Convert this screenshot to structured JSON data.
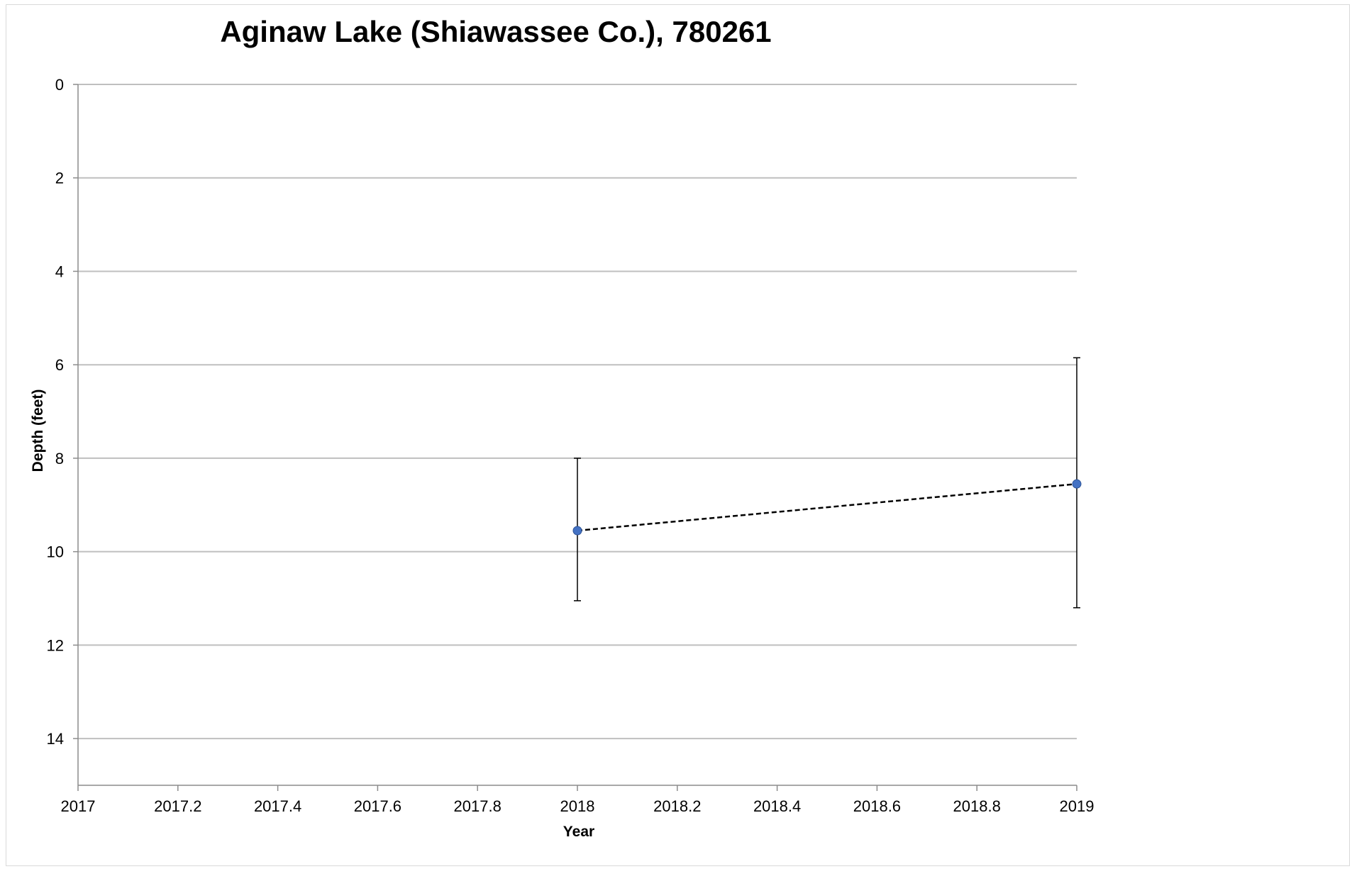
{
  "chart_data": {
    "type": "scatter",
    "title": "Aginaw Lake (Shiawassee Co.), 780261",
    "xlabel": "Year",
    "ylabel": "Depth (feet)",
    "xlim": [
      2017,
      2019
    ],
    "ylim": [
      0,
      15
    ],
    "y_reversed": true,
    "x_ticks": [
      "2017",
      "2017.2",
      "2017.4",
      "2017.6",
      "2017.8",
      "2018",
      "2018.2",
      "2018.4",
      "2018.6",
      "2018.8",
      "2019"
    ],
    "y_ticks": [
      "0",
      "2",
      "4",
      "6",
      "8",
      "10",
      "12",
      "14"
    ],
    "grid": "horizontal",
    "legend": "none",
    "series": [
      {
        "x": [
          2018,
          2019
        ],
        "y": [
          9.55,
          8.55
        ],
        "error_low": [
          11.05,
          11.2
        ],
        "error_high": [
          8.0,
          5.85
        ],
        "marker_color": "#4472c4",
        "line_style": "dashed",
        "line_color": "#000000"
      }
    ]
  }
}
